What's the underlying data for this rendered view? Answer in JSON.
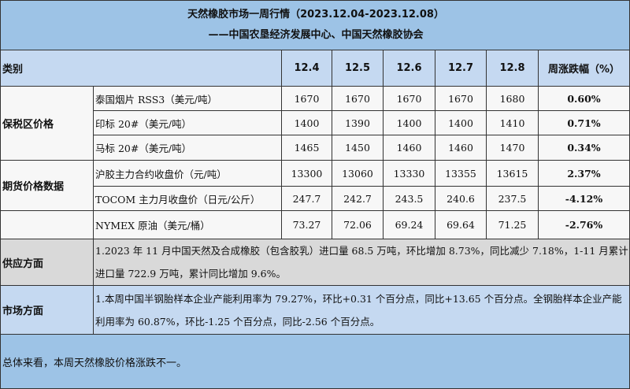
{
  "title": {
    "line1": "天然橡胶市场一周行情（2023.12.04-2023.12.08）",
    "line2": "——中国农垦经济发展中心、中国天然橡胶协会"
  },
  "header": {
    "category": "类别",
    "dates": [
      "12.4",
      "12.5",
      "12.6",
      "12.7",
      "12.8"
    ],
    "change": "周涨跌幅（%）"
  },
  "groups": {
    "bonded": "保税区价格",
    "futures": "期货价格数据"
  },
  "rows": [
    {
      "name": "泰国烟片 RSS3（美元/吨）",
      "values": [
        "1670",
        "1670",
        "1670",
        "1670",
        "1680"
      ],
      "change": "0.60%"
    },
    {
      "name": "印标 20#（美元/吨）",
      "values": [
        "1400",
        "1390",
        "1400",
        "1400",
        "1410"
      ],
      "change": "0.71%"
    },
    {
      "name": "马标 20#（美元/吨）",
      "values": [
        "1465",
        "1450",
        "1460",
        "1460",
        "1470"
      ],
      "change": "0.34%"
    },
    {
      "name": "沪胶主力合约收盘价（元/吨）",
      "values": [
        "13300",
        "13060",
        "13330",
        "13355",
        "13615"
      ],
      "change": "2.37%"
    },
    {
      "name": "TOCOM 主力月收盘价（日元/公斤）",
      "values": [
        "247.7",
        "242.7",
        "243.5",
        "240.6",
        "237.5"
      ],
      "change": "-4.12%"
    },
    {
      "name": "NYMEX 原油（美元/桶）",
      "values": [
        "73.27",
        "72.06",
        "69.24",
        "69.64",
        "71.25"
      ],
      "change": "-2.76%"
    }
  ],
  "supply": {
    "label": "供应方面",
    "text": "1.2023 年 11 月中国天然及合成橡胶（包含胶乳）进口量 68.5 万吨，环比增加 8.73%，同比减少 7.18%，1-11 月累计进口量 722.9 万吨，累计同比增加 9.6%。"
  },
  "market": {
    "label": "市场方面",
    "text": "1.本周中国半钢胎样本企业产能利用率为 79.27%，环比+0.31 个百分点，同比+13.65 个百分点。全钢胎样本企业产能利用率为 60.87%，环比-1.25 个百分点，同比-2.56 个百分点。"
  },
  "summary": "总体来看，本周天然橡胶价格涨跌不一。"
}
